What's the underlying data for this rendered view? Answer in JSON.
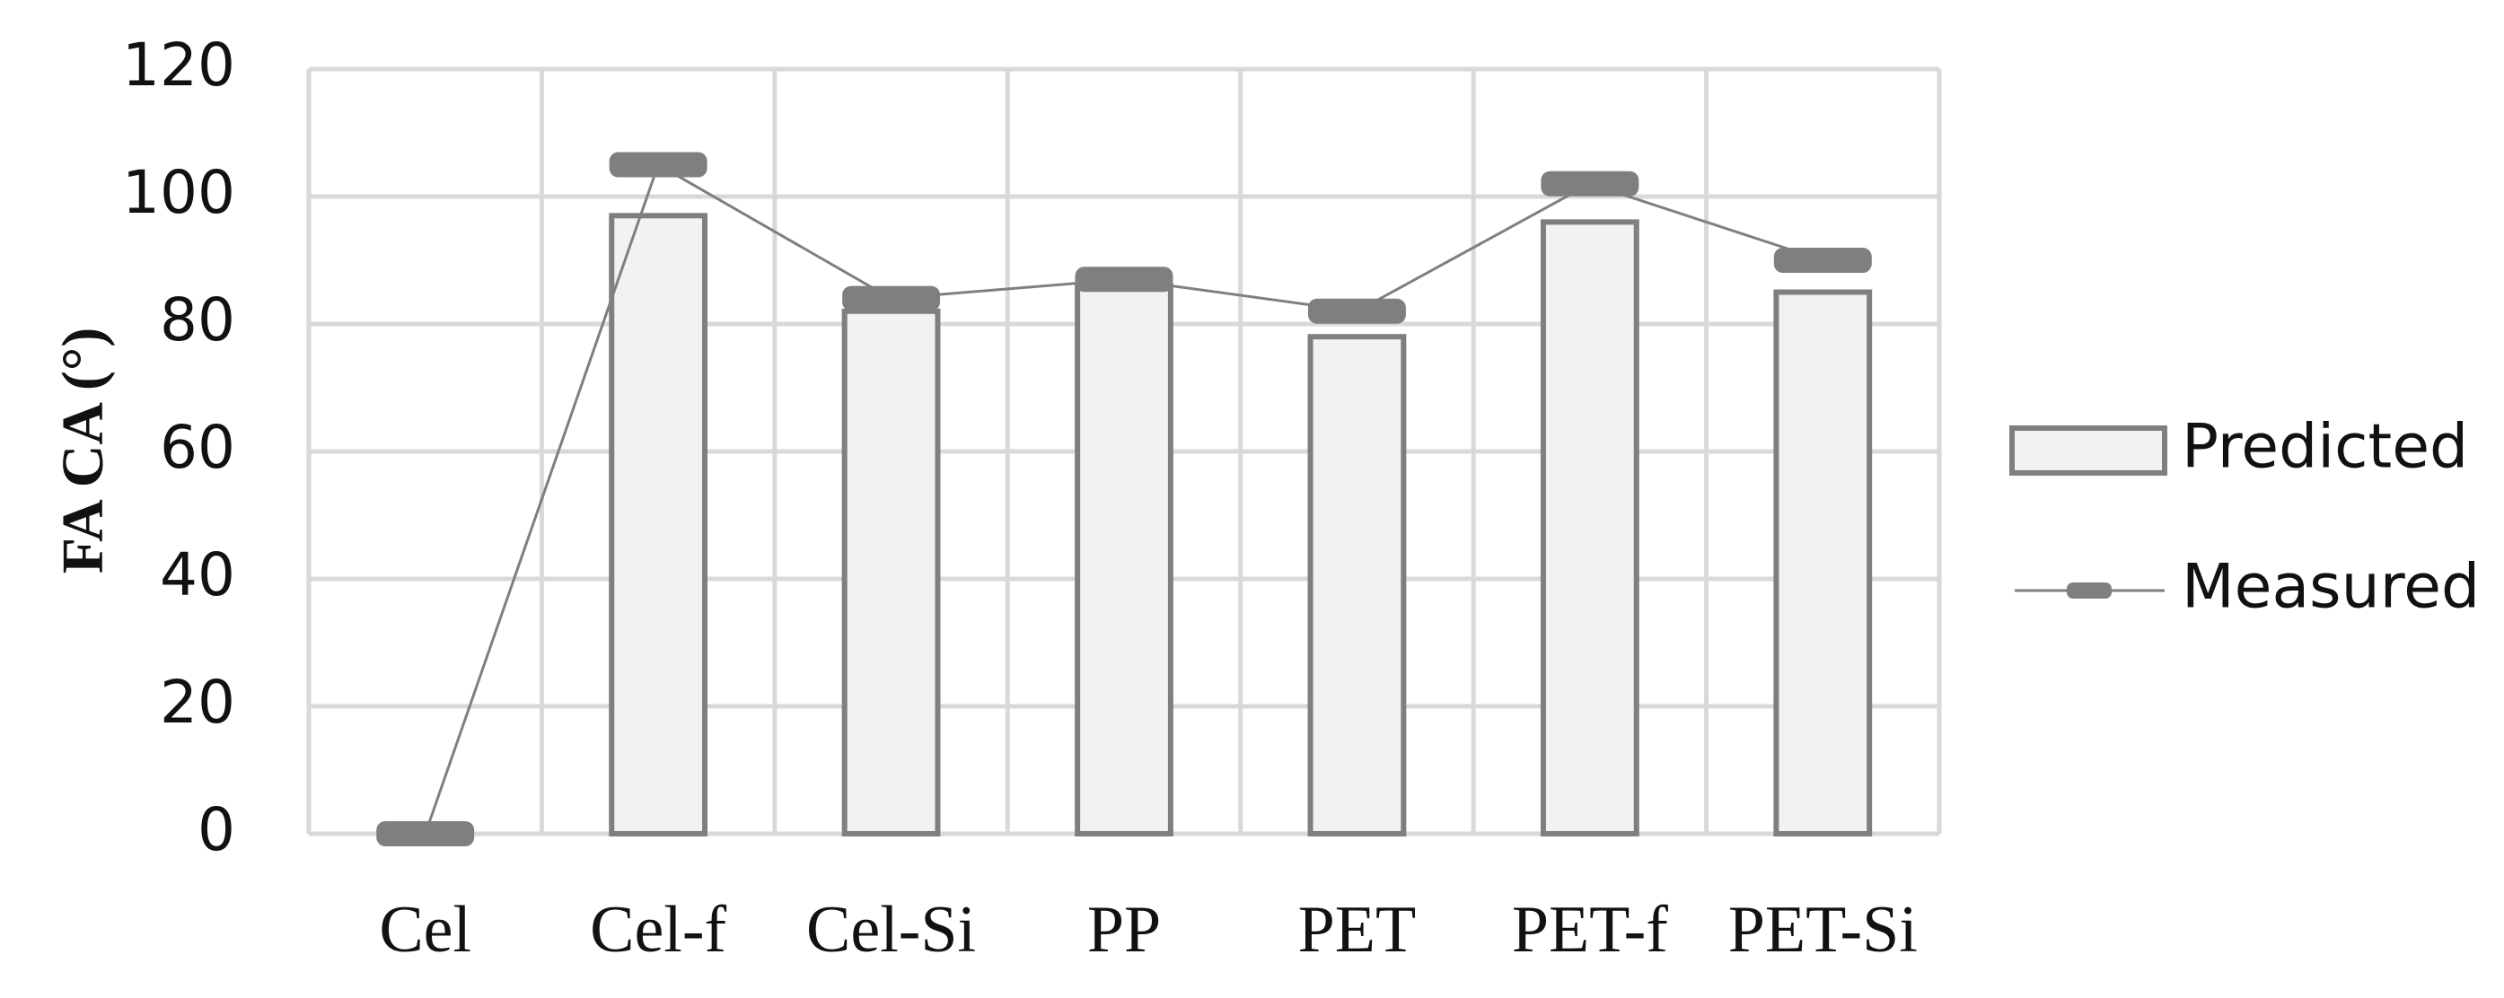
{
  "chart_data": {
    "type": "bar",
    "y_label": "FA CA (°)",
    "categories": [
      "Cel",
      "Cel-f",
      "Cel-Si",
      "PP",
      "PET",
      "PET-f",
      "PET-Si"
    ],
    "series": [
      {
        "name": "Predicted",
        "type": "bar",
        "color": "#f2f2f2",
        "values": [
          null,
          97,
          82,
          86,
          78,
          96,
          85
        ]
      },
      {
        "name": "Measured",
        "type": "line",
        "color": "#7f7f7f",
        "values": [
          0,
          105,
          84,
          87,
          82,
          102,
          90
        ]
      }
    ],
    "ylim": [
      0,
      120
    ],
    "yticks": [
      0,
      20,
      40,
      60,
      80,
      100,
      120
    ],
    "grid": true,
    "legend": "right"
  }
}
